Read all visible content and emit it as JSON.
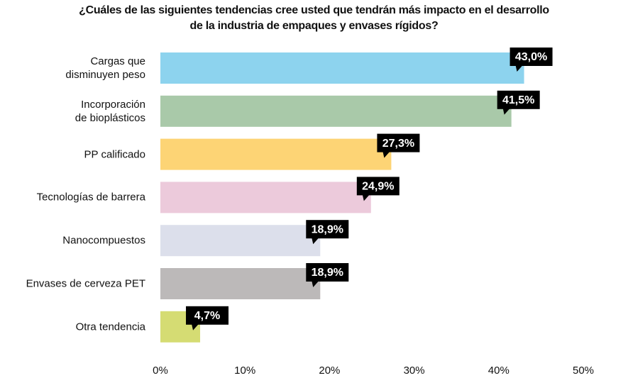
{
  "chart_data": {
    "type": "bar",
    "orientation": "horizontal",
    "title": "¿Cuáles de las siguientes tendencias cree usted que tendrán más impacto en el desarrollo\nde la industria de empaques y envases rígidos?",
    "categories": [
      "Cargas que\ndisminuyen peso",
      "Incorporación\nde bioplásticos",
      "PP calificado",
      "Tecnologías de barrera",
      "Nanocompuestos",
      "Envases de cerveza PET",
      "Otra tendencia"
    ],
    "values": [
      43.0,
      41.5,
      27.3,
      24.9,
      18.9,
      18.9,
      4.7
    ],
    "value_labels": [
      "43,0%",
      "41,5%",
      "27,3%",
      "24,9%",
      "18,9%",
      "18,9%",
      "4,7%"
    ],
    "colors": [
      "#8dd3ee",
      "#a9c9a9",
      "#fdd475",
      "#eccadb",
      "#dcdfeb",
      "#bcb9b9",
      "#d5dc73"
    ],
    "xlim": [
      0,
      50
    ],
    "xticks": [
      {
        "value": 0,
        "label": "0%"
      },
      {
        "value": 10,
        "label": "10%"
      },
      {
        "value": 20,
        "label": "20%"
      },
      {
        "value": 30,
        "label": "30%"
      },
      {
        "value": 40,
        "label": "40%"
      },
      {
        "value": 50,
        "label": "50%"
      }
    ],
    "grid": false
  }
}
